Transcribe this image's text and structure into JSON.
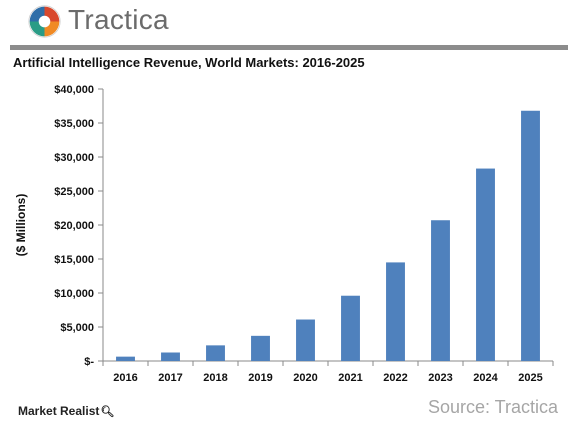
{
  "header": {
    "brand_name": "Tractica",
    "logo_icon": "tractica-pinwheel-icon"
  },
  "colors": {
    "bar": "#4f81bd",
    "logo_red": "#d8482d",
    "logo_orange": "#f08a24",
    "logo_blue": "#2f6ea8",
    "logo_teal": "#2a9c86",
    "divider": "#8c8c8c"
  },
  "chart_data": {
    "type": "bar",
    "title": "Artificial Intelligence Revenue, World Markets: 2016-2025",
    "xlabel": "",
    "ylabel": "($ Millions)",
    "categories": [
      "2016",
      "2017",
      "2018",
      "2019",
      "2020",
      "2021",
      "2022",
      "2023",
      "2024",
      "2025"
    ],
    "values": [
      640,
      1250,
      2300,
      3700,
      6100,
      9600,
      14500,
      20700,
      28300,
      36800
    ],
    "ylim": [
      0,
      40000
    ],
    "yticks": [
      0,
      5000,
      10000,
      15000,
      20000,
      25000,
      30000,
      35000,
      40000
    ],
    "ytick_labels": [
      "$-",
      "$5,000",
      "$10,000",
      "$15,000",
      "$20,000",
      "$25,000",
      "$30,000",
      "$35,000",
      "$40,000"
    ],
    "grid": false,
    "legend": "none"
  },
  "footer": {
    "brand": "Market Realist",
    "brand_icon": "magnifier-icon",
    "source": "Source: Tractica"
  }
}
